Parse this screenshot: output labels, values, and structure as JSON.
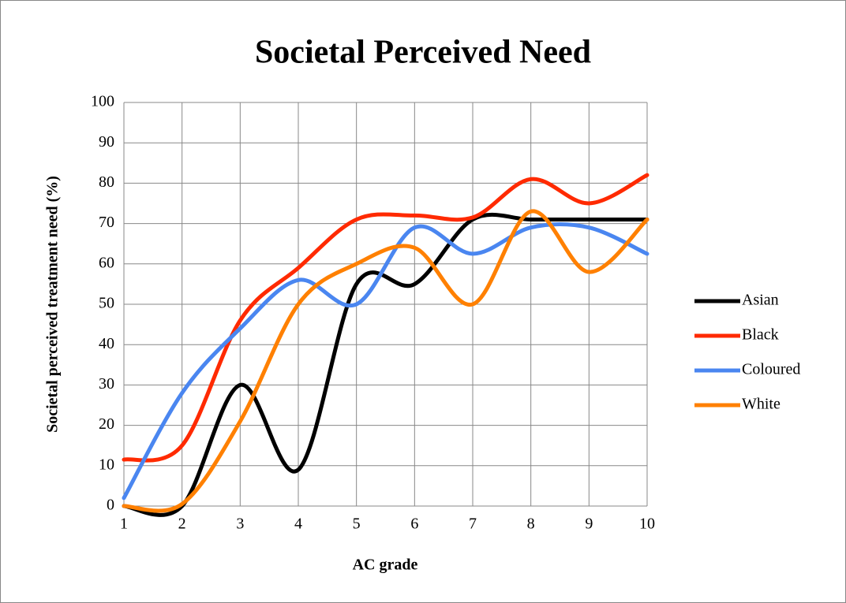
{
  "chart_data": {
    "type": "line",
    "title": "Societal Perceived Need",
    "x_label": "AC grade",
    "y_label": "Societal perceived treatment need (%)",
    "x": [
      1,
      2,
      3,
      4,
      5,
      6,
      7,
      8,
      9,
      10
    ],
    "xlim": [
      1,
      10
    ],
    "xticks": [
      1,
      2,
      3,
      4,
      5,
      6,
      7,
      8,
      9,
      10
    ],
    "ylim": [
      0,
      100
    ],
    "yticks": [
      0,
      10,
      20,
      30,
      40,
      50,
      60,
      70,
      80,
      90,
      100
    ],
    "grid": true,
    "smooth": true,
    "legend": "right",
    "series": [
      {
        "name": "Asian",
        "color": "#000000",
        "values": [
          0,
          0,
          30,
          9,
          55,
          55,
          71,
          71,
          71,
          71
        ]
      },
      {
        "name": "Black",
        "color": "#ff2a00",
        "values": [
          11.5,
          15,
          46,
          59,
          71,
          72,
          71.5,
          81,
          75,
          82
        ]
      },
      {
        "name": "Coloured",
        "color": "#4a86f0",
        "values": [
          2,
          28,
          44,
          56,
          50,
          69,
          62.5,
          69,
          69,
          62.5
        ]
      },
      {
        "name": "White",
        "color": "#ff8000",
        "values": [
          0,
          0.5,
          21,
          50,
          60,
          64,
          50,
          73,
          58,
          71
        ]
      }
    ]
  }
}
